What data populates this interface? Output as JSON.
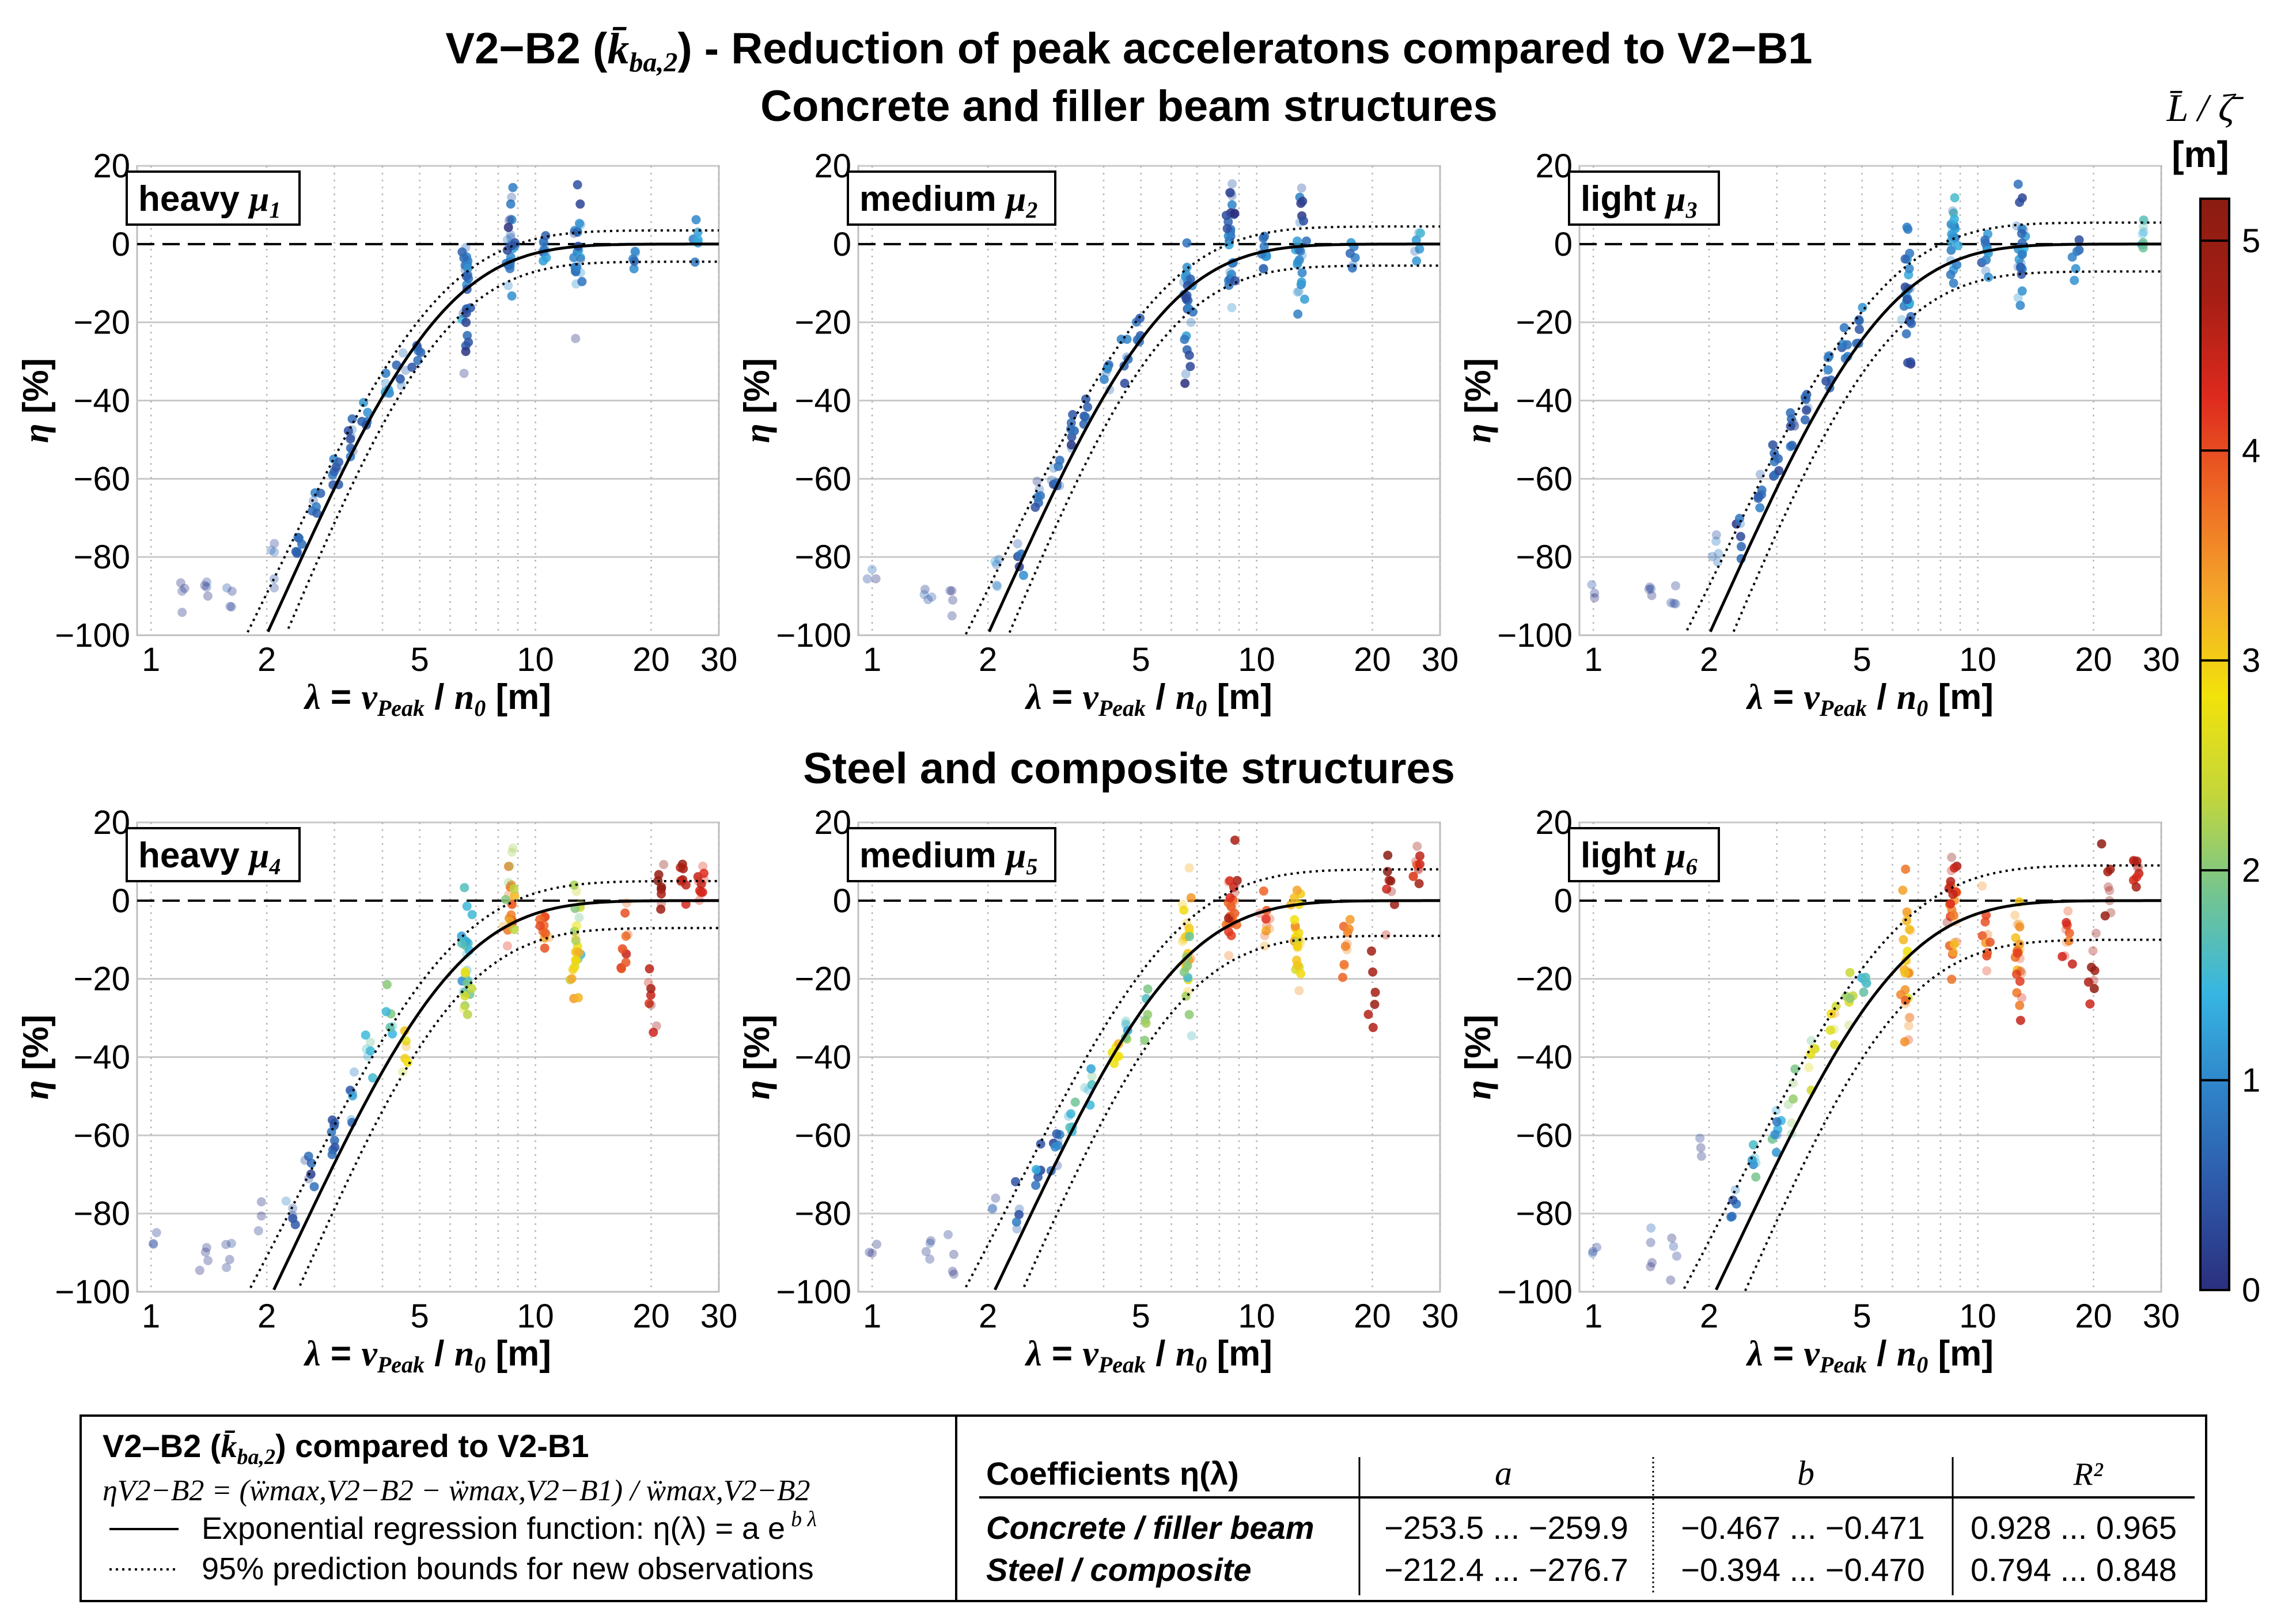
{
  "figure": {
    "title_line1_prefix": "V2−B2 (",
    "title_line1_symbol": "k̄",
    "title_line1_sub": "ba,2",
    "title_line1_suffix": ") - Reduction of peak acceleratons compared to V2−B1",
    "title_line2": "Concrete and filler beam structures",
    "section2_title": "Steel and composite structures"
  },
  "colorbar": {
    "label_top": "L̄ / ζ̄",
    "label_unit": "[m]",
    "ticks": [
      "0",
      "1",
      "2",
      "3",
      "4",
      "5"
    ],
    "range": [
      0,
      5.2
    ],
    "colors": [
      "#2b2f7e",
      "#2e57a8",
      "#2f82c8",
      "#37b6e2",
      "#74c58f",
      "#c4d63a",
      "#f2e20b",
      "#f4a72a",
      "#ee6a24",
      "#de2a1e",
      "#a61e14",
      "#8a1c12"
    ]
  },
  "axes_common": {
    "ylabel_symbol": "η",
    "ylabel_unit": "[%]",
    "xlabel_symbol": "λ",
    "xlabel_eq": " = ",
    "xlabel_v": "v",
    "xlabel_v_sub": "Peak",
    "xlabel_slash": " / ",
    "xlabel_n": "n",
    "xlabel_n_sub": "0",
    "xlabel_unit": " [m]",
    "yticks": [
      "20",
      "0",
      "−20",
      "−40",
      "−60",
      "−80",
      "−100"
    ],
    "xticks": [
      "1",
      "2",
      "5",
      "10",
      "20",
      "30"
    ]
  },
  "panels": [
    {
      "label_word": "heavy",
      "label_mu": "μ",
      "label_sub": "1"
    },
    {
      "label_word": "medium",
      "label_mu": "μ",
      "label_sub": "2"
    },
    {
      "label_word": "light",
      "label_mu": "μ",
      "label_sub": "3"
    },
    {
      "label_word": "heavy",
      "label_mu": "μ",
      "label_sub": "4"
    },
    {
      "label_word": "medium",
      "label_mu": "μ",
      "label_sub": "5"
    },
    {
      "label_word": "light",
      "label_mu": "μ",
      "label_sub": "6"
    }
  ],
  "legend": {
    "heading_prefix": "V2–B2 (",
    "heading_symbol": "k̄",
    "heading_sub": "ba,2",
    "heading_suffix": ") compared to V2-B1",
    "formula": "ηV2−B2 = (ẅmax,V2−B2 − ẅmax,V2−B1) / ẅmax,V2−B2",
    "line_solid_label": "Exponential regression function: η(λ) = a e",
    "line_solid_exp": "b λ",
    "line_dotted_label": "95% prediction bounds for new observations"
  },
  "coef_table": {
    "header": [
      "Coefficients η(λ)",
      "a",
      "b",
      "R²"
    ],
    "rows": [
      [
        "Concrete / filler beam",
        "−253.5 ... −259.9",
        "−0.467 ... −0.471",
        "0.928 ... 0.965"
      ],
      [
        "Steel / composite",
        "−212.4 ... −276.7",
        "−0.394 ... −0.470",
        "0.794 ... 0.848"
      ]
    ]
  },
  "chart_data": [
    {
      "type": "scatter",
      "panel": "heavy μ1",
      "xscale": "log",
      "xlim": [
        0.92,
        30
      ],
      "ylim": [
        -100,
        20
      ],
      "fit": {
        "a": -255,
        "b": -0.469,
        "offset": 0
      },
      "bounds": {
        "lower": [
          -4.5
        ],
        "upper": [
          3.5
        ]
      },
      "clusters": [
        [
          1.2,
          -89,
          2.5,
          0.2,
          4
        ],
        [
          1.4,
          -88,
          2.5,
          0.2,
          4
        ],
        [
          1.6,
          -91,
          2.5,
          0.2,
          4
        ],
        [
          2.1,
          -80,
          3,
          0.7,
          5
        ],
        [
          2.4,
          -77,
          3,
          0.6,
          6
        ],
        [
          2.7,
          -68,
          3,
          0.6,
          6
        ],
        [
          3.0,
          -58,
          3,
          0.6,
          8
        ],
        [
          3.3,
          -50,
          3,
          0.6,
          8
        ],
        [
          3.6,
          -45,
          3,
          0.6,
          6
        ],
        [
          4.1,
          -37,
          3,
          0.7,
          6
        ],
        [
          4.5,
          -31,
          3,
          0.7,
          6
        ],
        [
          4.9,
          -27,
          3,
          0.6,
          6
        ],
        [
          6.6,
          -10,
          6,
          0.8,
          18
        ],
        [
          6.6,
          -20,
          6,
          0.3,
          8
        ],
        [
          8.6,
          -3,
          5,
          0.8,
          18
        ],
        [
          8.6,
          8,
          8,
          0.3,
          8
        ],
        [
          10.5,
          -2,
          3,
          0.8,
          10
        ],
        [
          12.9,
          -2,
          6,
          0.9,
          18
        ],
        [
          12.9,
          3,
          8,
          0.3,
          6
        ],
        [
          18,
          -3,
          3,
          0.8,
          6
        ],
        [
          26,
          2,
          3,
          1.0,
          6
        ]
      ]
    },
    {
      "type": "scatter",
      "panel": "medium μ2",
      "xscale": "log",
      "xlim": [
        0.92,
        30
      ],
      "ylim": [
        -100,
        20
      ],
      "fit": {
        "a": -255,
        "b": -0.469,
        "offset": 0
      },
      "bounds": {
        "lower": [
          -5.5
        ],
        "upper": [
          4.5
        ]
      },
      "clusters": [
        [
          1.0,
          -86,
          3,
          0.2,
          3
        ],
        [
          1.4,
          -88,
          2.5,
          0.2,
          4
        ],
        [
          1.6,
          -91,
          2.5,
          0.2,
          4
        ],
        [
          2.1,
          -82,
          3,
          0.6,
          5
        ],
        [
          2.4,
          -77,
          3,
          0.6,
          6
        ],
        [
          2.7,
          -65,
          3,
          0.6,
          6
        ],
        [
          3.0,
          -57,
          3,
          0.6,
          8
        ],
        [
          3.3,
          -48,
          3,
          0.6,
          8
        ],
        [
          3.6,
          -43,
          3,
          0.6,
          6
        ],
        [
          4.1,
          -35,
          3,
          0.7,
          6
        ],
        [
          4.5,
          -29,
          3,
          0.7,
          6
        ],
        [
          4.9,
          -23,
          3,
          0.6,
          6
        ],
        [
          6.6,
          -12,
          6,
          0.8,
          18
        ],
        [
          6.6,
          -22,
          6,
          0.4,
          8
        ],
        [
          8.6,
          -2,
          5,
          0.8,
          18
        ],
        [
          8.6,
          9,
          8,
          0.3,
          8
        ],
        [
          10.5,
          -3,
          3,
          0.8,
          10
        ],
        [
          12.9,
          -4,
          6,
          0.9,
          18
        ],
        [
          12.9,
          4,
          8,
          0.3,
          6
        ],
        [
          18,
          -4,
          3,
          0.8,
          6
        ],
        [
          26,
          1,
          3,
          1.0,
          6
        ]
      ]
    },
    {
      "type": "scatter",
      "panel": "light μ3",
      "xscale": "log",
      "xlim": [
        0.92,
        30
      ],
      "ylim": [
        -100,
        20
      ],
      "fit": {
        "a": -255,
        "b": -0.469,
        "offset": 0
      },
      "bounds": {
        "lower": [
          -7
        ],
        "upper": [
          5.5
        ]
      },
      "clusters": [
        [
          1.0,
          -87,
          3,
          0.2,
          3
        ],
        [
          1.4,
          -89,
          2.5,
          0.2,
          4
        ],
        [
          1.6,
          -91,
          2.5,
          0.2,
          4
        ],
        [
          2.1,
          -80,
          3,
          0.6,
          5
        ],
        [
          2.4,
          -75,
          3,
          0.6,
          6
        ],
        [
          2.7,
          -64,
          3,
          0.6,
          6
        ],
        [
          3.0,
          -56,
          3,
          0.6,
          8
        ],
        [
          3.3,
          -47,
          3,
          0.6,
          8
        ],
        [
          3.6,
          -42,
          3,
          0.6,
          6
        ],
        [
          4.1,
          -33,
          3,
          0.7,
          6
        ],
        [
          4.5,
          -27,
          3,
          0.7,
          6
        ],
        [
          4.9,
          -20,
          3,
          0.6,
          6
        ],
        [
          6.6,
          -10,
          6,
          0.9,
          18
        ],
        [
          6.6,
          -22,
          6,
          0.4,
          8
        ],
        [
          8.6,
          -1,
          5,
          1.0,
          18
        ],
        [
          8.6,
          10,
          8,
          1.1,
          8
        ],
        [
          10.5,
          -3,
          3,
          0.9,
          10
        ],
        [
          12.9,
          -4,
          6,
          1.0,
          18
        ],
        [
          12.9,
          4,
          8,
          0.4,
          6
        ],
        [
          18,
          -5,
          3,
          0.9,
          6
        ],
        [
          27,
          2,
          3,
          1.5,
          8
        ]
      ]
    },
    {
      "type": "scatter",
      "panel": "heavy μ4",
      "xscale": "log",
      "xlim": [
        0.92,
        30
      ],
      "ylim": [
        -100,
        20
      ],
      "fit": {
        "a": -244,
        "b": -0.43,
        "offset": 0
      },
      "bounds": {
        "lower": [
          -7
        ],
        "upper": [
          5
        ]
      },
      "clusters": [
        [
          1.0,
          -87,
          3,
          0.2,
          3
        ],
        [
          1.4,
          -90,
          2.5,
          0.2,
          4
        ],
        [
          1.6,
          -92,
          2.5,
          0.2,
          4
        ],
        [
          1.9,
          -80,
          3,
          0.3,
          3
        ],
        [
          2.3,
          -80,
          3,
          0.6,
          5
        ],
        [
          2.6,
          -70,
          3,
          0.6,
          6
        ],
        [
          3.0,
          -60,
          3,
          0.7,
          8
        ],
        [
          3.3,
          -50,
          3,
          0.8,
          6
        ],
        [
          3.7,
          -40,
          3,
          1.5,
          6
        ],
        [
          4.2,
          -32,
          3,
          1.7,
          6
        ],
        [
          4.6,
          -38,
          4,
          2.8,
          6
        ],
        [
          6.6,
          -12,
          7,
          1.5,
          18
        ],
        [
          6.6,
          -22,
          6,
          2.5,
          8
        ],
        [
          8.6,
          -2,
          6,
          3.6,
          16
        ],
        [
          8.6,
          5,
          6,
          2.2,
          8
        ],
        [
          10.5,
          -6,
          4,
          3.7,
          10
        ],
        [
          12.8,
          -8,
          7,
          2.4,
          18
        ],
        [
          12.8,
          -18,
          4,
          3.2,
          8
        ],
        [
          17,
          -10,
          6,
          4.0,
          10
        ],
        [
          20,
          -25,
          7,
          4.6,
          8
        ],
        [
          21,
          5,
          5,
          5.0,
          8
        ],
        [
          24,
          3,
          4,
          4.6,
          8
        ],
        [
          27,
          4,
          3,
          4.2,
          10
        ]
      ]
    },
    {
      "type": "scatter",
      "panel": "medium μ5",
      "xscale": "log",
      "xlim": [
        0.92,
        30
      ],
      "ylim": [
        -100,
        20
      ],
      "fit": {
        "a": -244,
        "b": -0.43,
        "offset": 0
      },
      "bounds": {
        "lower": [
          -9
        ],
        "upper": [
          8
        ]
      },
      "clusters": [
        [
          1.0,
          -89,
          3,
          0.2,
          3
        ],
        [
          1.4,
          -90,
          2.5,
          0.2,
          4
        ],
        [
          1.6,
          -91,
          2.5,
          0.2,
          4
        ],
        [
          2.1,
          -78,
          3,
          0.3,
          3
        ],
        [
          2.4,
          -80,
          3,
          0.6,
          5
        ],
        [
          2.7,
          -70,
          3,
          0.7,
          6
        ],
        [
          3.0,
          -62,
          3,
          0.8,
          8
        ],
        [
          3.3,
          -55,
          3,
          1.7,
          6
        ],
        [
          3.7,
          -48,
          3,
          1.5,
          6
        ],
        [
          4.3,
          -40,
          3,
          2.8,
          6
        ],
        [
          4.6,
          -33,
          3,
          1.8,
          6
        ],
        [
          5.1,
          -28,
          3,
          2.0,
          6
        ],
        [
          6.6,
          -12,
          7,
          3.0,
          18
        ],
        [
          6.6,
          -20,
          6,
          2.0,
          8
        ],
        [
          8.6,
          -5,
          6,
          3.8,
          16
        ],
        [
          8.6,
          4,
          6,
          4.5,
          8
        ],
        [
          10.5,
          -8,
          4,
          3.8,
          10
        ],
        [
          12.8,
          -10,
          7,
          3.2,
          18
        ],
        [
          12.8,
          -18,
          4,
          2.8,
          8
        ],
        [
          17,
          -12,
          6,
          3.8,
          10
        ],
        [
          20,
          -22,
          6,
          4.8,
          6
        ],
        [
          22,
          4,
          5,
          4.8,
          8
        ],
        [
          26,
          6,
          4,
          4.5,
          10
        ]
      ]
    },
    {
      "type": "scatter",
      "panel": "light μ6",
      "xscale": "log",
      "xlim": [
        0.92,
        30
      ],
      "ylim": [
        -100,
        20
      ],
      "fit": {
        "a": -244,
        "b": -0.43,
        "offset": 0
      },
      "bounds": {
        "lower": [
          -10
        ],
        "upper": [
          9
        ]
      },
      "clusters": [
        [
          1.0,
          -89,
          3,
          0.2,
          3
        ],
        [
          1.4,
          -90,
          2.5,
          0.2,
          4
        ],
        [
          1.6,
          -88,
          3,
          0.2,
          4
        ],
        [
          1.9,
          -65,
          3,
          0.3,
          3
        ],
        [
          2.3,
          -78,
          3,
          0.7,
          5
        ],
        [
          2.6,
          -68,
          3,
          1.5,
          6
        ],
        [
          3.0,
          -58,
          3,
          1.2,
          8
        ],
        [
          3.3,
          -50,
          4,
          2.0,
          6
        ],
        [
          3.7,
          -40,
          4,
          2.5,
          6
        ],
        [
          4.2,
          -33,
          4,
          2.8,
          6
        ],
        [
          4.6,
          -24,
          4,
          2.2,
          6
        ],
        [
          5.1,
          -20,
          3,
          1.8,
          6
        ],
        [
          6.6,
          -12,
          8,
          3.2,
          18
        ],
        [
          6.6,
          -30,
          6,
          3.6,
          8
        ],
        [
          8.6,
          -8,
          7,
          3.8,
          18
        ],
        [
          8.6,
          5,
          6,
          4.8,
          8
        ],
        [
          10.5,
          -10,
          5,
          3.8,
          10
        ],
        [
          12.8,
          -10,
          7,
          3.5,
          18
        ],
        [
          12.8,
          -20,
          4,
          4.2,
          8
        ],
        [
          17,
          -12,
          6,
          4.0,
          10
        ],
        [
          20,
          -20,
          7,
          4.8,
          8
        ],
        [
          22,
          4,
          5,
          4.9,
          8
        ],
        [
          26,
          6,
          4,
          4.5,
          10
        ]
      ]
    }
  ]
}
